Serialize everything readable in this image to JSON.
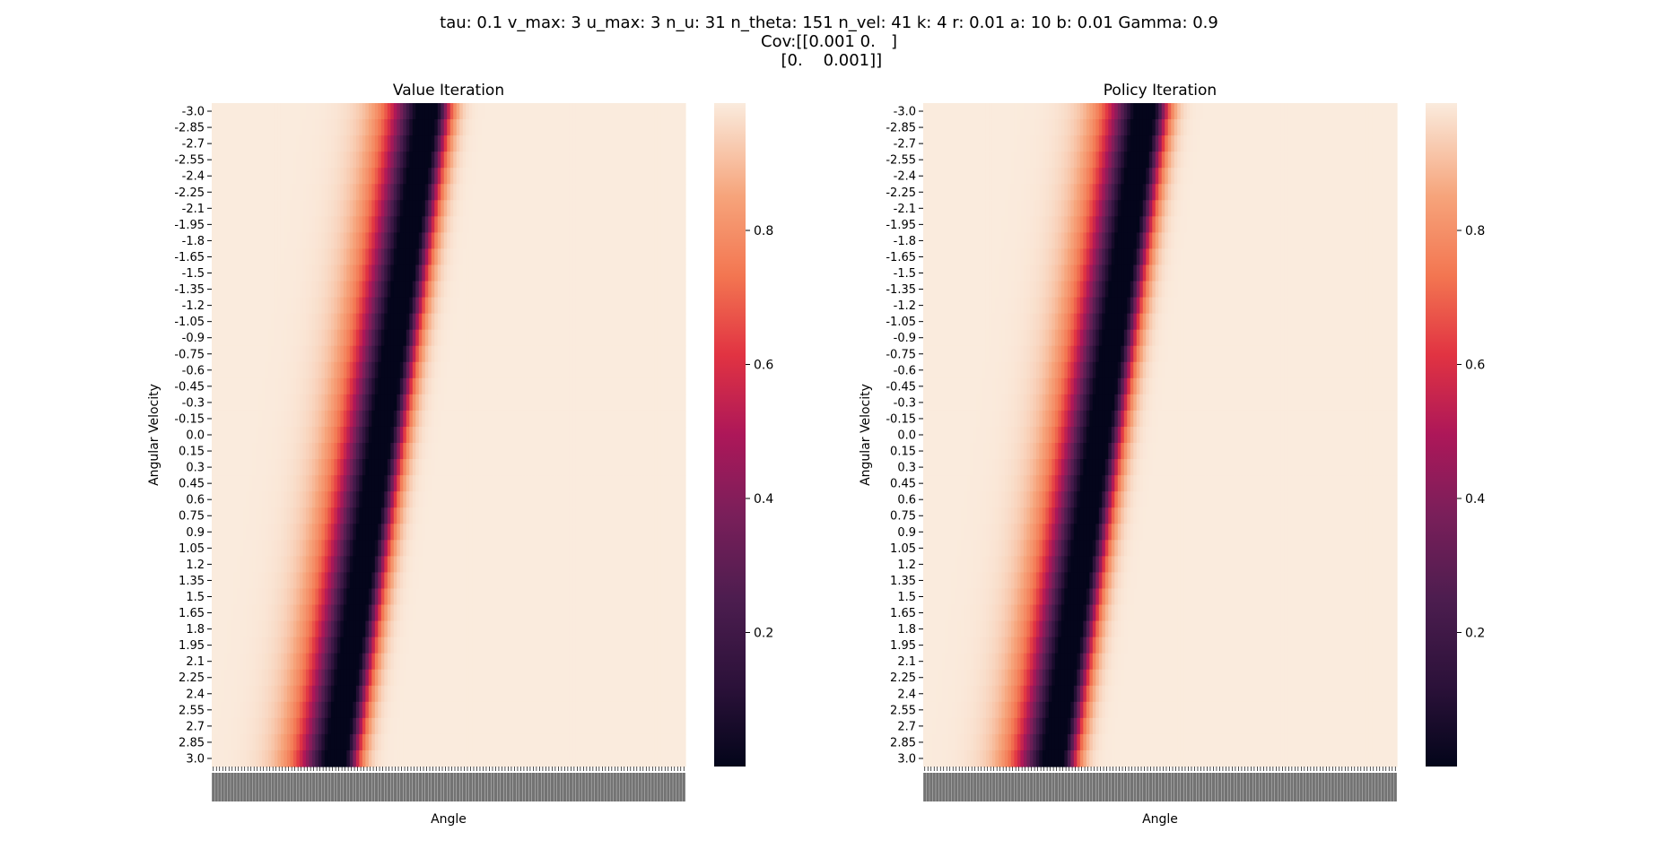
{
  "suptitle": {
    "line1": "tau: 0.1 v_max: 3 u_max: 3 n_u: 31 n_theta: 151 n_vel: 41 k: 4 r: 0.01 a: 10 b: 0.01 Gamma: 0.9",
    "line2": "Cov:[[0.001 0.   ]",
    "line3": " [0.    0.001]]"
  },
  "chart_data": [
    {
      "type": "heatmap",
      "title": "Value Iteration",
      "xlabel": "Angle",
      "ylabel": "Angular Velocity",
      "x": {
        "range": [
          -3.14,
          3.14
        ],
        "count": 151,
        "note_ticks": "151 overlapping tick labels, unreadable"
      },
      "y_ticks": [
        "-3.0",
        "-2.85",
        "-2.7",
        "-2.55",
        "-2.4",
        "-2.25",
        "-2.1",
        "-1.95",
        "-1.8",
        "-1.65",
        "-1.5",
        "-1.35",
        "-1.2",
        "-1.05",
        "-0.9",
        "-0.75",
        "-0.6",
        "-0.45",
        "-0.3",
        "-0.15",
        "0.0",
        "0.15",
        "0.3",
        "0.45",
        "0.6",
        "0.75",
        "0.9",
        "1.05",
        "1.2",
        "1.35",
        "1.5",
        "1.65",
        "1.8",
        "1.95",
        "2.1",
        "2.25",
        "2.4",
        "2.55",
        "2.7",
        "2.85",
        "3.0"
      ],
      "colorbar": {
        "ticks": [
          0.2,
          0.4,
          0.6,
          0.8
        ],
        "range": [
          0.0,
          0.99
        ],
        "colormap": "rocket"
      },
      "band": {
        "center_top_col": 68,
        "center_bottom_col": 39,
        "min_value": 0.003,
        "note": "dark diagonal band of low values; values approach ~0.99 away from the band"
      }
    },
    {
      "type": "heatmap",
      "title": "Policy Iteration",
      "xlabel": "Angle",
      "ylabel": "Angular Velocity",
      "x": {
        "range": [
          -3.14,
          3.14
        ],
        "count": 151,
        "note_ticks": "151 overlapping tick labels, unreadable"
      },
      "y_ticks": [
        "-3.0",
        "-2.85",
        "-2.7",
        "-2.55",
        "-2.4",
        "-2.25",
        "-2.1",
        "-1.95",
        "-1.8",
        "-1.65",
        "-1.5",
        "-1.35",
        "-1.2",
        "-1.05",
        "-0.9",
        "-0.75",
        "-0.6",
        "-0.45",
        "-0.3",
        "-0.15",
        "0.0",
        "0.15",
        "0.3",
        "0.45",
        "0.6",
        "0.75",
        "0.9",
        "1.05",
        "1.2",
        "1.35",
        "1.5",
        "1.65",
        "1.8",
        "1.95",
        "2.1",
        "2.25",
        "2.4",
        "2.55",
        "2.7",
        "2.85",
        "3.0"
      ],
      "colorbar": {
        "ticks": [
          0.2,
          0.4,
          0.6,
          0.8
        ],
        "range": [
          0.0,
          0.99
        ],
        "colormap": "rocket"
      },
      "band": {
        "center_top_col": 70,
        "center_bottom_col": 41,
        "min_value": 0.003,
        "note": "dark diagonal band of low values; values approach ~0.99 away from the band"
      }
    }
  ],
  "colors": {
    "light": "#faebdd",
    "peach": "#f6b48f",
    "orange": "#f37651",
    "red": "#e13342",
    "magenta": "#ad1759",
    "purple": "#701f57",
    "darkpurple": "#35193e",
    "black": "#03051a"
  }
}
